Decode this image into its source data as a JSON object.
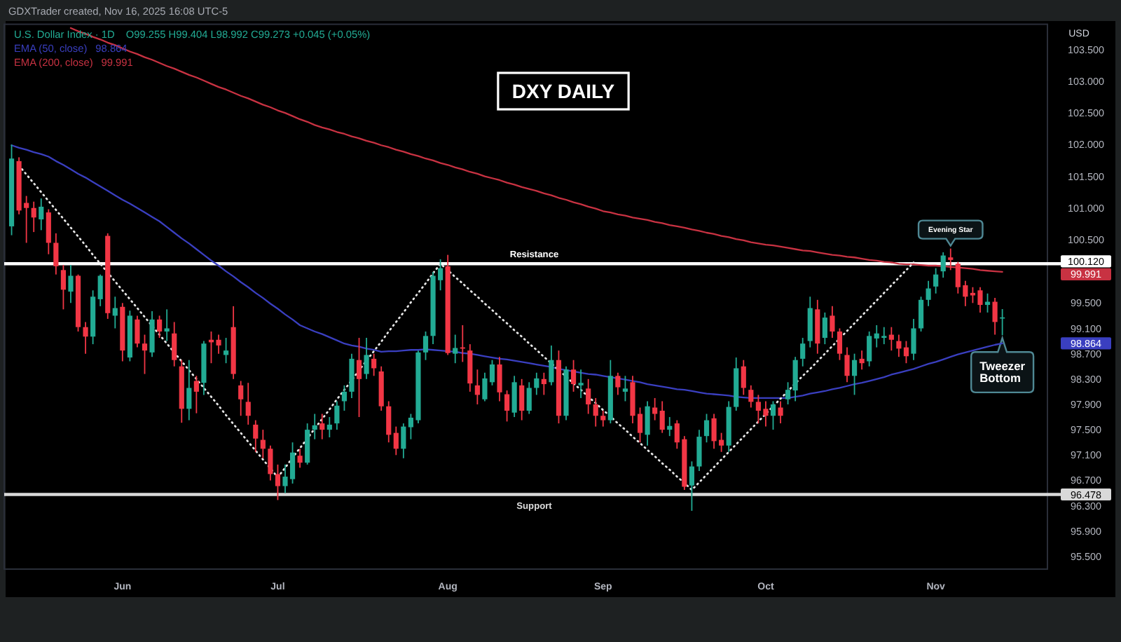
{
  "chart_data": {
    "type": "candlestick",
    "title": "DXY DAILY",
    "ylabel": "USD",
    "legend": "top left",
    "categories": [
      null,
      null,
      null,
      null,
      null,
      null,
      null,
      null,
      null,
      null,
      null,
      null,
      null,
      null,
      null,
      "Jun",
      null,
      null,
      null,
      null,
      null,
      null,
      null,
      null,
      null,
      null,
      null,
      null,
      null,
      null,
      null,
      null,
      null,
      null,
      null,
      null,
      "Jul",
      null,
      null,
      null,
      null,
      null,
      null,
      null,
      null,
      null,
      null,
      null,
      null,
      null,
      null,
      null,
      null,
      null,
      null,
      null,
      null,
      null,
      null,
      "Aug",
      null,
      null,
      null,
      null,
      null,
      null,
      null,
      null,
      null,
      null,
      null,
      null,
      null,
      null,
      null,
      null,
      null,
      null,
      null,
      null,
      "Sep",
      null,
      null,
      null,
      null,
      null,
      null,
      null,
      null,
      null,
      null,
      null,
      null,
      null,
      null,
      null,
      null,
      null,
      null,
      null,
      null,
      null,
      "Oct",
      null,
      null,
      null,
      null,
      null,
      null,
      null,
      null,
      null,
      null,
      null,
      null,
      null,
      null,
      null,
      null,
      null,
      null,
      null,
      null,
      null,
      null,
      "Nov",
      null,
      null,
      null,
      null,
      null,
      null,
      null,
      null,
      null
    ],
    "ylim": [
      95.3,
      103.9
    ],
    "yticks": [
      {
        "value": 95.5,
        "label": "95.500"
      },
      {
        "value": 95.9,
        "label": "95.900"
      },
      {
        "value": 96.3,
        "label": "96.300"
      },
      {
        "value": 96.7,
        "label": "96.700"
      },
      {
        "value": 97.1,
        "label": "97.100"
      },
      {
        "value": 97.5,
        "label": "97.500"
      },
      {
        "value": 97.9,
        "label": "97.900"
      },
      {
        "value": 98.3,
        "label": "98.300"
      },
      {
        "value": 98.7,
        "label": "98.700"
      },
      {
        "value": 99.1,
        "label": "99.100"
      },
      {
        "value": 99.5,
        "label": "99.500"
      },
      {
        "value": 100.5,
        "label": "100.500"
      },
      {
        "value": 101,
        "label": "101.000"
      },
      {
        "value": 101.5,
        "label": "101.500"
      },
      {
        "value": 102,
        "label": "102.000"
      },
      {
        "value": 102.5,
        "label": "102.500"
      },
      {
        "value": 103,
        "label": "103.000"
      },
      {
        "value": 103.5,
        "label": "103.500"
      }
    ],
    "series": [
      {
        "name": "U.S. Dollar Index · 1D",
        "ohlc": [
          [
            100.71,
            102.0,
            100.57,
            101.78
          ],
          [
            101.74,
            101.8,
            100.9,
            100.96
          ],
          [
            101.08,
            101.19,
            100.45,
            101.0
          ],
          [
            101.0,
            101.1,
            100.62,
            100.85
          ],
          [
            100.82,
            101.15,
            100.65,
            101.02
          ],
          [
            100.93,
            100.98,
            100.27,
            100.45
          ],
          [
            100.45,
            100.6,
            99.95,
            100.08
          ],
          [
            100.02,
            100.1,
            99.4,
            99.71
          ],
          [
            99.68,
            100.1,
            99.5,
            99.93
          ],
          [
            99.93,
            99.95,
            99.05,
            99.12
          ],
          [
            99.12,
            99.2,
            98.7,
            98.97
          ],
          [
            98.97,
            99.7,
            98.85,
            99.6
          ],
          [
            99.56,
            99.95,
            99.45,
            99.93
          ],
          [
            100.56,
            100.6,
            99.25,
            99.34
          ],
          [
            99.3,
            99.6,
            99.1,
            99.42
          ],
          [
            99.44,
            99.5,
            98.58,
            98.75
          ],
          [
            98.64,
            99.38,
            98.58,
            99.3
          ],
          [
            99.24,
            99.3,
            98.8,
            98.86
          ],
          [
            98.86,
            99.0,
            98.38,
            98.75
          ],
          [
            98.72,
            99.37,
            98.65,
            99.24
          ],
          [
            99.24,
            99.3,
            98.95,
            99.05
          ],
          [
            99.05,
            99.4,
            98.9,
            99.1
          ],
          [
            99.02,
            99.2,
            98.5,
            98.6
          ],
          [
            98.5,
            98.6,
            97.61,
            97.83
          ],
          [
            97.83,
            98.6,
            97.65,
            98.16
          ],
          [
            98.27,
            98.35,
            97.76,
            98.1
          ],
          [
            98.24,
            98.9,
            98.05,
            98.86
          ],
          [
            98.92,
            99.05,
            98.55,
            98.88
          ],
          [
            98.92,
            99.0,
            98.7,
            98.83
          ],
          [
            98.68,
            98.95,
            98.55,
            98.75
          ],
          [
            99.12,
            99.45,
            98.3,
            98.38
          ],
          [
            98.2,
            98.27,
            97.72,
            97.98
          ],
          [
            97.94,
            98.24,
            97.58,
            97.72
          ],
          [
            97.58,
            97.65,
            97.15,
            97.36
          ],
          [
            97.34,
            97.5,
            97.05,
            97.2
          ],
          [
            97.2,
            97.25,
            96.7,
            96.8
          ],
          [
            96.8,
            96.95,
            96.39,
            96.61
          ],
          [
            96.61,
            96.95,
            96.5,
            96.76
          ],
          [
            96.72,
            97.3,
            96.65,
            97.14
          ],
          [
            97.09,
            97.2,
            96.9,
            96.98
          ],
          [
            96.98,
            97.6,
            96.95,
            97.5
          ],
          [
            97.5,
            97.75,
            97.35,
            97.57
          ],
          [
            97.6,
            97.75,
            97.35,
            97.5
          ],
          [
            97.5,
            97.7,
            97.38,
            97.58
          ],
          [
            97.6,
            97.95,
            97.5,
            97.88
          ],
          [
            97.95,
            98.2,
            97.8,
            98.1
          ],
          [
            98.1,
            98.7,
            98.0,
            98.62
          ],
          [
            98.6,
            98.95,
            97.7,
            98.3
          ],
          [
            98.38,
            98.95,
            98.3,
            98.68
          ],
          [
            98.62,
            98.7,
            98.35,
            98.47
          ],
          [
            98.42,
            98.5,
            97.8,
            97.87
          ],
          [
            97.87,
            97.95,
            97.3,
            97.42
          ],
          [
            97.45,
            97.55,
            97.1,
            97.2
          ],
          [
            97.2,
            97.6,
            97.05,
            97.55
          ],
          [
            97.54,
            97.75,
            97.35,
            97.69
          ],
          [
            97.65,
            98.75,
            97.6,
            98.72
          ],
          [
            98.72,
            99.05,
            98.6,
            98.98
          ],
          [
            98.98,
            99.99,
            98.85,
            99.93
          ],
          [
            99.86,
            100.19,
            99.7,
            100.05
          ],
          [
            100.08,
            100.26,
            98.68,
            98.71
          ],
          [
            98.7,
            99.0,
            98.55,
            98.79
          ],
          [
            98.8,
            99.15,
            98.57,
            98.78
          ],
          [
            98.75,
            98.85,
            98.1,
            98.23
          ],
          [
            98.2,
            98.45,
            97.9,
            98.05
          ],
          [
            97.98,
            98.4,
            97.95,
            98.31
          ],
          [
            98.25,
            98.6,
            98.2,
            98.53
          ],
          [
            98.53,
            98.65,
            97.95,
            98.09
          ],
          [
            98.06,
            98.12,
            97.63,
            97.8
          ],
          [
            97.77,
            98.35,
            97.7,
            98.25
          ],
          [
            98.2,
            98.3,
            97.65,
            97.8
          ],
          [
            97.8,
            98.25,
            97.75,
            98.16
          ],
          [
            98.16,
            98.4,
            98.05,
            98.31
          ],
          [
            98.3,
            98.4,
            98.05,
            98.22
          ],
          [
            98.25,
            98.83,
            98.2,
            98.6
          ],
          [
            98.6,
            98.75,
            97.6,
            97.72
          ],
          [
            97.72,
            98.5,
            97.65,
            98.45
          ],
          [
            98.45,
            98.6,
            98.1,
            98.22
          ],
          [
            98.2,
            98.45,
            98.0,
            98.24
          ],
          [
            98.15,
            98.3,
            97.75,
            97.9
          ],
          [
            97.9,
            98.0,
            97.55,
            97.72
          ],
          [
            97.72,
            97.8,
            97.55,
            97.65
          ],
          [
            97.65,
            98.6,
            97.6,
            98.35
          ],
          [
            98.35,
            98.4,
            98.05,
            98.17
          ],
          [
            98.1,
            98.35,
            97.95,
            98.15
          ],
          [
            98.25,
            98.35,
            97.6,
            97.72
          ],
          [
            97.75,
            97.85,
            97.3,
            97.45
          ],
          [
            97.42,
            97.95,
            97.25,
            97.87
          ],
          [
            97.85,
            98.0,
            97.65,
            97.75
          ],
          [
            97.8,
            97.95,
            97.45,
            97.5
          ],
          [
            97.5,
            97.7,
            97.4,
            97.56
          ],
          [
            97.6,
            97.65,
            97.2,
            97.3
          ],
          [
            97.35,
            97.4,
            96.55,
            96.6
          ],
          [
            96.62,
            97.0,
            96.22,
            96.92
          ],
          [
            96.92,
            97.5,
            96.85,
            97.39
          ],
          [
            97.4,
            97.75,
            97.3,
            97.65
          ],
          [
            97.68,
            97.75,
            97.2,
            97.32
          ],
          [
            97.34,
            97.45,
            97.15,
            97.25
          ],
          [
            97.25,
            97.95,
            97.15,
            97.86
          ],
          [
            97.86,
            98.64,
            97.8,
            98.47
          ],
          [
            98.5,
            98.6,
            98.05,
            98.16
          ],
          [
            98.13,
            98.2,
            97.85,
            97.94
          ],
          [
            97.94,
            98.05,
            97.6,
            97.8
          ],
          [
            97.83,
            97.95,
            97.55,
            97.72
          ],
          [
            97.72,
            97.95,
            97.5,
            97.9
          ],
          [
            97.85,
            97.95,
            97.6,
            97.72
          ],
          [
            97.98,
            98.25,
            97.9,
            98.13
          ],
          [
            98.12,
            98.65,
            97.95,
            98.6
          ],
          [
            98.62,
            98.95,
            98.5,
            98.86
          ],
          [
            98.9,
            99.6,
            98.8,
            99.42
          ],
          [
            99.4,
            99.55,
            98.7,
            98.86
          ],
          [
            98.95,
            99.35,
            98.85,
            99.27
          ],
          [
            99.3,
            99.45,
            98.95,
            99.05
          ],
          [
            99.05,
            99.1,
            98.6,
            98.7
          ],
          [
            98.68,
            98.8,
            98.25,
            98.35
          ],
          [
            98.35,
            98.7,
            98.05,
            98.6
          ],
          [
            98.62,
            98.75,
            98.45,
            98.55
          ],
          [
            98.58,
            99.05,
            98.5,
            98.98
          ],
          [
            98.94,
            99.15,
            98.8,
            99.02
          ],
          [
            98.95,
            99.12,
            98.85,
            98.98
          ],
          [
            99.0,
            99.12,
            98.75,
            98.92
          ],
          [
            98.9,
            99.0,
            98.65,
            98.78
          ],
          [
            98.8,
            98.9,
            98.55,
            98.66
          ],
          [
            98.7,
            99.25,
            98.6,
            99.1
          ],
          [
            99.1,
            99.6,
            99.05,
            99.55
          ],
          [
            99.55,
            99.85,
            99.45,
            99.73
          ],
          [
            99.76,
            100.05,
            99.65,
            99.95
          ],
          [
            100.0,
            100.3,
            99.9,
            100.25
          ],
          [
            100.22,
            100.36,
            100.02,
            100.18
          ],
          [
            100.12,
            100.15,
            99.65,
            99.75
          ],
          [
            99.78,
            99.85,
            99.45,
            99.6
          ],
          [
            99.66,
            99.75,
            99.5,
            99.62
          ],
          [
            99.7,
            99.75,
            99.35,
            99.47
          ],
          [
            99.47,
            99.65,
            99.35,
            99.52
          ],
          [
            99.52,
            99.58,
            99.0,
            99.2
          ],
          [
            99.255,
            99.404,
            98.992,
            99.273
          ]
        ],
        "colors": [
          "#22ab94",
          "#f23645",
          "#f23645",
          "#f23645",
          "#22ab94",
          "#f23645",
          "#f23645",
          "#f23645",
          "#22ab94",
          "#f23645",
          "#f23645",
          "#22ab94",
          "#22ab94",
          "#f23645",
          "#22ab94",
          "#f23645",
          "#22ab94",
          "#f23645",
          "#f23645",
          "#22ab94",
          "#f23645",
          "#22ab94",
          "#f23645",
          "#f23645",
          "#22ab94",
          "#f23645",
          "#22ab94",
          "#f23645",
          "#f23645",
          "#22ab94",
          "#f23645",
          "#f23645",
          "#f23645",
          "#f23645",
          "#f23645",
          "#f23645",
          "#f23645",
          "#22ab94",
          "#22ab94",
          "#f23645",
          "#22ab94",
          "#22ab94",
          "#f23645",
          "#22ab94",
          "#22ab94",
          "#22ab94",
          "#22ab94",
          "#f23645",
          "#22ab94",
          "#f23645",
          "#f23645",
          "#f23645",
          "#f23645",
          "#22ab94",
          "#22ab94",
          "#22ab94",
          "#22ab94",
          "#22ab94",
          "#22ab94",
          "#f23645",
          "#22ab94",
          "#f23645",
          "#f23645",
          "#f23645",
          "#22ab94",
          "#22ab94",
          "#f23645",
          "#f23645",
          "#22ab94",
          "#f23645",
          "#22ab94",
          "#22ab94",
          "#f23645",
          "#22ab94",
          "#f23645",
          "#22ab94",
          "#f23645",
          "#22ab94",
          "#f23645",
          "#f23645",
          "#f23645",
          "#22ab94",
          "#f23645",
          "#22ab94",
          "#f23645",
          "#f23645",
          "#22ab94",
          "#f23645",
          "#f23645",
          "#22ab94",
          "#f23645",
          "#f23645",
          "#22ab94",
          "#22ab94",
          "#22ab94",
          "#f23645",
          "#f23645",
          "#22ab94",
          "#22ab94",
          "#f23645",
          "#f23645",
          "#f23645",
          "#f23645",
          "#22ab94",
          "#f23645",
          "#22ab94",
          "#22ab94",
          "#22ab94",
          "#22ab94",
          "#f23645",
          "#22ab94",
          "#f23645",
          "#f23645",
          "#f23645",
          "#22ab94",
          "#f23645",
          "#22ab94",
          "#22ab94",
          "#22ab94",
          "#f23645",
          "#f23645",
          "#f23645",
          "#22ab94",
          "#22ab94",
          "#22ab94",
          "#22ab94",
          "#22ab94",
          "#f23645",
          "#f23645",
          "#f23645",
          "#f23645",
          "#f23645",
          "#22ab94",
          "#f23645",
          "#22ab94"
        ]
      },
      {
        "type": "line",
        "name": "EMA (50, close)",
        "color": "#3a3fc0",
        "values": [
          101.99,
          101.95,
          101.92,
          101.88,
          101.85,
          101.81,
          101.74,
          101.68,
          101.61,
          101.54,
          101.48,
          101.41,
          101.34,
          101.27,
          101.2,
          101.13,
          101.07,
          101.0,
          100.93,
          100.86,
          100.79,
          100.7,
          100.61,
          100.52,
          100.44,
          100.35,
          100.26,
          100.17,
          100.09,
          100.0,
          99.92,
          99.83,
          99.75,
          99.66,
          99.58,
          99.49,
          99.41,
          99.32,
          99.24,
          99.15,
          99.1,
          99.05,
          99.01,
          98.96,
          98.91,
          98.86,
          98.83,
          98.81,
          98.78,
          98.76,
          98.73,
          98.74,
          98.74,
          98.75,
          98.76,
          98.76,
          98.77,
          98.76,
          98.75,
          98.74,
          98.73,
          98.71,
          98.7,
          98.68,
          98.66,
          98.64,
          98.62,
          98.61,
          98.59,
          98.57,
          98.55,
          98.53,
          98.51,
          98.49,
          98.46,
          98.44,
          98.42,
          98.4,
          98.38,
          98.37,
          98.35,
          98.33,
          98.31,
          98.29,
          98.27,
          98.25,
          98.22,
          98.2,
          98.18,
          98.16,
          98.14,
          98.13,
          98.11,
          98.09,
          98.07,
          98.06,
          98.05,
          98.04,
          98.02,
          98.01,
          98.0,
          98.0,
          98.0,
          98.0,
          98.0,
          98.0,
          98.02,
          98.04,
          98.07,
          98.09,
          98.11,
          98.14,
          98.16,
          98.19,
          98.22,
          98.24,
          98.27,
          98.3,
          98.33,
          98.37,
          98.4,
          98.43,
          98.46,
          98.5,
          98.54,
          98.57,
          98.61,
          98.65,
          98.69,
          98.72,
          98.75,
          98.78,
          98.81,
          98.84,
          98.864
        ]
      },
      {
        "type": "line",
        "name": "EMA (200, close)",
        "color": "#c83242",
        "values": [
          null,
          null,
          null,
          null,
          null,
          null,
          null,
          null,
          103.84,
          103.79,
          103.75,
          103.7,
          103.66,
          103.61,
          103.57,
          103.52,
          103.47,
          103.43,
          103.38,
          103.34,
          103.29,
          103.24,
          103.2,
          103.15,
          103.1,
          103.06,
          103.01,
          102.96,
          102.91,
          102.87,
          102.82,
          102.77,
          102.73,
          102.68,
          102.63,
          102.59,
          102.54,
          102.5,
          102.45,
          102.4,
          102.36,
          102.31,
          102.27,
          102.24,
          102.2,
          102.17,
          102.13,
          102.1,
          102.06,
          102.03,
          101.99,
          101.96,
          101.92,
          101.89,
          101.85,
          101.82,
          101.78,
          101.75,
          101.71,
          101.68,
          101.64,
          101.61,
          101.57,
          101.54,
          101.5,
          101.47,
          101.44,
          101.4,
          101.37,
          101.33,
          101.3,
          101.27,
          101.23,
          101.2,
          101.16,
          101.13,
          101.09,
          101.06,
          101.02,
          100.99,
          100.95,
          100.93,
          100.9,
          100.88,
          100.85,
          100.83,
          100.81,
          100.78,
          100.76,
          100.73,
          100.71,
          100.69,
          100.66,
          100.64,
          100.61,
          100.59,
          100.56,
          100.54,
          100.51,
          100.49,
          100.46,
          100.44,
          100.42,
          100.41,
          100.39,
          100.37,
          100.35,
          100.33,
          100.32,
          100.3,
          100.28,
          100.26,
          100.25,
          100.23,
          100.22,
          100.2,
          100.18,
          100.17,
          100.15,
          100.14,
          100.12,
          100.11,
          100.11,
          100.1,
          100.09,
          100.09,
          100.08,
          100.07,
          100.06,
          100.05,
          100.04,
          100.02,
          100.01,
          100.0,
          99.991
        ]
      },
      {
        "type": "line",
        "color": "#e6e6e6",
        "line_style": "dotted",
        "values": [
          null,
          101.67,
          101.53,
          101.39,
          101.25,
          101.11,
          100.97,
          100.83,
          100.69,
          100.55,
          100.41,
          100.26,
          100.12,
          99.98,
          99.84,
          99.7,
          99.56,
          99.42,
          99.28,
          99.14,
          99.0,
          98.86,
          98.72,
          98.58,
          98.44,
          98.3,
          98.16,
          98.02,
          97.88,
          97.73,
          97.59,
          97.45,
          97.31,
          97.17,
          97.03,
          96.89,
          96.75,
          96.9,
          97.06,
          97.21,
          97.36,
          97.52,
          97.67,
          97.82,
          97.98,
          98.13,
          98.28,
          98.44,
          98.59,
          98.74,
          98.89,
          99.05,
          99.2,
          99.35,
          99.51,
          99.66,
          99.81,
          99.97,
          100.12,
          100.02,
          99.91,
          99.81,
          99.7,
          99.6,
          99.49,
          99.39,
          99.28,
          99.18,
          99.07,
          98.97,
          98.86,
          98.76,
          98.65,
          98.55,
          98.44,
          98.34,
          98.23,
          98.13,
          98.02,
          97.92,
          97.81,
          97.71,
          97.6,
          97.5,
          97.39,
          97.29,
          97.18,
          97.08,
          96.97,
          96.87,
          96.76,
          96.66,
          96.55,
          96.67,
          96.79,
          96.91,
          97.03,
          97.15,
          97.27,
          97.39,
          97.51,
          97.63,
          97.75,
          97.87,
          97.99,
          98.11,
          98.23,
          98.35,
          98.46,
          98.58,
          98.7,
          98.82,
          98.94,
          99.06,
          99.18,
          99.3,
          99.42,
          99.54,
          99.66,
          99.78,
          99.9,
          100.02,
          100.14,
          null,
          null,
          null,
          null,
          null,
          null,
          null,
          null,
          null,
          null,
          null,
          null
        ]
      }
    ],
    "ref_lines": [
      {
        "axis": "y",
        "value": 100.12,
        "label": "Resistance",
        "color": "#ffffff"
      },
      {
        "axis": "y",
        "value": 96.478,
        "label": "Support",
        "color": "#d9d9d9"
      }
    ],
    "annotations": [
      "GDXTrader created, Nov 16, 2025 16:08 UTC-5",
      "O99.255 H99.404 L98.992 C99.273 +0.045 (+0.05%)",
      {
        "text": "Evening Star",
        "y": 100.36
      },
      {
        "text": "Tweezer Bottom",
        "y": 98.992
      },
      "100.120",
      "96.478",
      "98.864",
      "99.991"
    ]
  }
}
